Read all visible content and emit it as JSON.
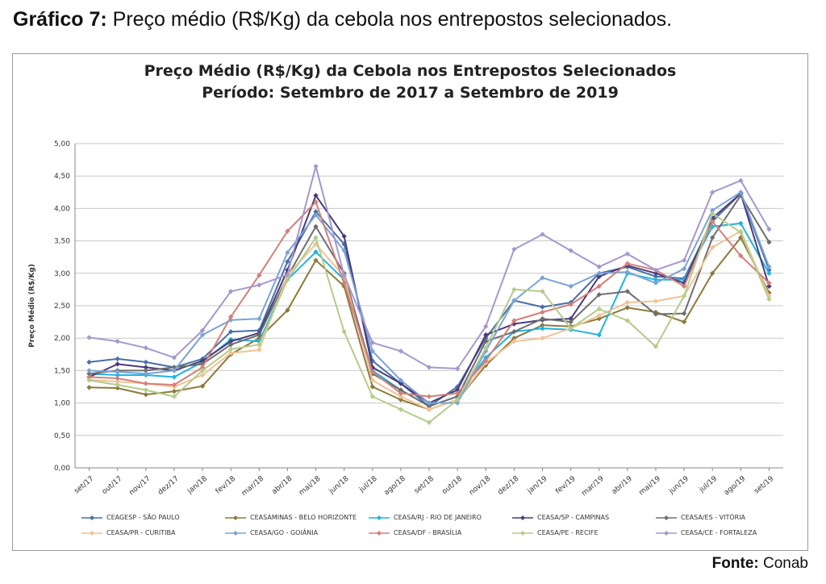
{
  "caption": {
    "prefix": "Gráfico 7:",
    "text": " Preço médio (R$/Kg) da cebola nos entrepostos selecionados."
  },
  "source": {
    "prefix": "Fonte:",
    "text": " Conab"
  },
  "chart_data": {
    "type": "line",
    "title": "Preço Médio (R$/Kg) da Cebola nos Entrepostos Selecionados",
    "subtitle": "Período: Setembro de 2017 a Setembro de 2019",
    "ylabel": "Preço Médio (R$/Kg)",
    "xlabel": "",
    "ylim": [
      0,
      5
    ],
    "yticks": [
      "0,00",
      "0,50",
      "1,00",
      "1,50",
      "2,00",
      "2,50",
      "3,00",
      "3,50",
      "4,00",
      "4,50",
      "5,00"
    ],
    "grid": true,
    "legend_position": "bottom",
    "categories": [
      "set/17",
      "out/17",
      "nov/17",
      "dez/17",
      "jan/18",
      "fev/18",
      "mar/18",
      "abr/18",
      "mai/18",
      "jun/18",
      "jul/18",
      "ago/18",
      "set/18",
      "out/18",
      "nov/18",
      "dez/18",
      "jan/19",
      "fev/19",
      "mar/19",
      "abr/19",
      "mai/19",
      "jun/19",
      "jul/19",
      "ago/19",
      "set/19"
    ],
    "series": [
      {
        "name": "CEAGESP - SÃO PAULO",
        "color": "#4a6fa5",
        "values": [
          1.63,
          1.68,
          1.63,
          1.55,
          1.68,
          2.1,
          2.12,
          3.18,
          3.95,
          3.45,
          1.65,
          1.3,
          0.95,
          1.25,
          2.0,
          2.58,
          2.48,
          2.55,
          3.0,
          3.1,
          2.95,
          2.92,
          3.8,
          4.23,
          3.05
        ]
      },
      {
        "name": "CEASAMINAS - BELO HORIZONTE",
        "color": "#8c7a3c",
        "values": [
          1.24,
          1.23,
          1.13,
          1.18,
          1.26,
          1.75,
          2.0,
          2.43,
          3.2,
          2.8,
          1.25,
          1.05,
          0.9,
          1.05,
          1.58,
          2.0,
          2.2,
          2.18,
          2.3,
          2.47,
          2.4,
          2.25,
          3.0,
          3.55,
          2.7
        ]
      },
      {
        "name": "CEASA/RJ - RIO DE JANEIRO",
        "color": "#1fb4e0",
        "values": [
          1.45,
          1.43,
          1.43,
          1.4,
          1.63,
          1.98,
          1.95,
          2.9,
          3.33,
          2.9,
          1.5,
          1.2,
          0.95,
          1.1,
          1.7,
          2.1,
          2.15,
          2.13,
          2.05,
          3.0,
          2.9,
          2.9,
          3.72,
          3.77,
          3.0
        ]
      },
      {
        "name": "CEASA/SP - CAMPINAS",
        "color": "#4b3b7a",
        "values": [
          1.4,
          1.6,
          1.55,
          1.5,
          1.65,
          1.95,
          2.08,
          3.05,
          4.2,
          3.57,
          1.55,
          1.3,
          1.0,
          1.2,
          2.05,
          2.22,
          2.28,
          2.3,
          2.95,
          3.12,
          3.0,
          2.85,
          3.85,
          4.23,
          2.8
        ]
      },
      {
        "name": "CEASA/ES - VITÓRIA",
        "color": "#6e6e6e",
        "values": [
          1.45,
          1.5,
          1.5,
          1.55,
          1.6,
          1.9,
          2.05,
          2.95,
          3.72,
          3.0,
          1.45,
          1.2,
          0.95,
          1.1,
          1.95,
          2.1,
          2.3,
          2.25,
          2.67,
          2.72,
          2.37,
          2.38,
          3.55,
          4.2,
          3.48
        ]
      },
      {
        "name": "CEASA/PR - CURITIBA",
        "color": "#f2c294",
        "values": [
          1.36,
          1.33,
          1.3,
          1.25,
          1.43,
          1.77,
          1.82,
          2.97,
          3.45,
          2.95,
          1.35,
          1.1,
          0.9,
          1.05,
          1.62,
          1.95,
          2.0,
          2.15,
          2.35,
          2.55,
          2.57,
          2.65,
          3.4,
          3.65,
          2.65
        ]
      },
      {
        "name": "CEASA/GO - GOIÂNIA",
        "color": "#7aa3d6",
        "values": [
          1.5,
          1.48,
          1.45,
          1.5,
          2.05,
          2.28,
          2.3,
          3.32,
          3.9,
          3.35,
          1.8,
          1.35,
          1.0,
          1.0,
          1.8,
          2.58,
          2.93,
          2.8,
          3.0,
          3.02,
          2.85,
          3.07,
          3.97,
          4.25,
          3.1
        ]
      },
      {
        "name": "CEASA/DF - BRASÍLIA",
        "color": "#d47f7a",
        "values": [
          1.4,
          1.38,
          1.3,
          1.28,
          1.55,
          2.33,
          2.97,
          3.65,
          4.1,
          2.85,
          1.48,
          1.15,
          1.1,
          1.15,
          1.65,
          2.27,
          2.4,
          2.52,
          2.8,
          3.15,
          3.05,
          2.8,
          3.8,
          3.27,
          2.85
        ]
      },
      {
        "name": "CEASA/PE - RECIFE",
        "color": "#b4cc8a",
        "values": [
          1.35,
          1.28,
          1.2,
          1.1,
          1.5,
          1.83,
          1.9,
          2.9,
          3.55,
          2.1,
          1.1,
          0.9,
          0.7,
          1.05,
          1.85,
          2.75,
          2.72,
          2.15,
          2.45,
          2.27,
          1.87,
          2.65,
          3.92,
          3.63,
          2.6
        ]
      },
      {
        "name": "CEASA/CE - FORTALEZA",
        "color": "#a697cf",
        "values": [
          2.01,
          1.95,
          1.85,
          1.7,
          2.12,
          2.72,
          2.82,
          2.98,
          4.65,
          2.97,
          1.93,
          1.8,
          1.55,
          1.53,
          2.18,
          3.37,
          3.6,
          3.35,
          3.1,
          3.3,
          3.05,
          3.2,
          4.25,
          4.43,
          3.68
        ]
      }
    ]
  }
}
